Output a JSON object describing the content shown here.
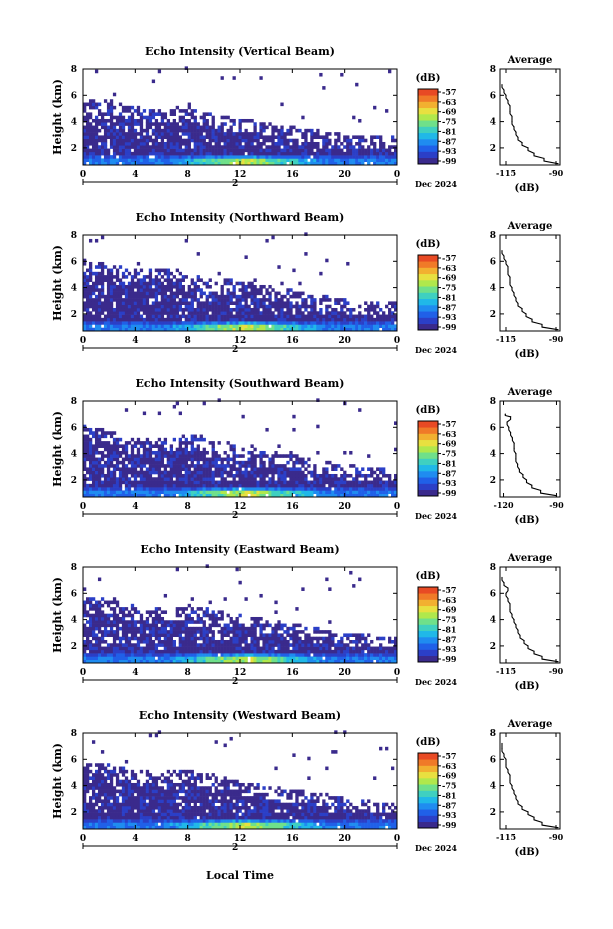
{
  "figure": {
    "xlabel": "Local Time",
    "ylabel": "Height (km)",
    "date_label": "Dec 2024",
    "day_label": "2",
    "cbar_unit": "(dB)",
    "avg_title": "Average",
    "avg_xlabel": "(dB)"
  },
  "colors": {
    "colormap": [
      "#3a2a8c",
      "#2b3fc7",
      "#2060e8",
      "#1f8cf0",
      "#20b8e8",
      "#3fd0c0",
      "#6fe08a",
      "#b0e84c",
      "#e8e040",
      "#f2b030",
      "#f07a28",
      "#e84a24"
    ],
    "background": "#ffffff",
    "axis": "#000000"
  },
  "chart_data": [
    {
      "type": "heatmap",
      "title": "Echo Intensity (Vertical Beam)",
      "x_ticks": [
        "0",
        "4",
        "8",
        "12",
        "16",
        "20",
        "0"
      ],
      "y_ticks": [
        "2",
        "4",
        "6",
        "8"
      ],
      "xlim": [
        0,
        24
      ],
      "ylim": [
        0.7,
        8
      ],
      "cbar_ticks": [
        "-57",
        "-63",
        "-69",
        "-75",
        "-81",
        "-87",
        "-93",
        "-99"
      ],
      "ceiling": [
        [
          0,
          5.3
        ],
        [
          2,
          5.1
        ],
        [
          4,
          4.6
        ],
        [
          6,
          4.3
        ],
        [
          8,
          4.6
        ],
        [
          10,
          4.0
        ],
        [
          12,
          3.7
        ],
        [
          14,
          3.4
        ],
        [
          16,
          3.1
        ],
        [
          18,
          2.8
        ],
        [
          20,
          2.5
        ],
        [
          22,
          2.4
        ],
        [
          24,
          2.3
        ]
      ],
      "avg_profile": {
        "x_ticks": [
          "-115",
          "-90"
        ],
        "xlim": [
          -118,
          -88
        ],
        "y_ticks": [
          "2",
          "4",
          "6",
          "8"
        ],
        "ylim": [
          0.7,
          8
        ],
        "height": [
          0.8,
          1.2,
          1.6,
          2.0,
          2.4,
          2.8,
          3.2,
          3.6,
          4.0,
          4.4,
          4.8,
          5.2,
          5.6,
          6.0,
          6.4,
          6.8
        ],
        "db": [
          -89,
          -96,
          -101,
          -104,
          -107,
          -109,
          -110,
          -111,
          -112,
          -112,
          -113,
          -113,
          -114,
          -115,
          -116,
          -117
        ]
      }
    },
    {
      "type": "heatmap",
      "title": "Echo Intensity (Northward Beam)",
      "x_ticks": [
        "0",
        "4",
        "8",
        "12",
        "16",
        "20",
        "0"
      ],
      "y_ticks": [
        "2",
        "4",
        "6",
        "8"
      ],
      "xlim": [
        0,
        24
      ],
      "ylim": [
        0.7,
        8
      ],
      "cbar_ticks": [
        "-57",
        "-63",
        "-69",
        "-75",
        "-81",
        "-87",
        "-93",
        "-99"
      ],
      "ceiling": [
        [
          0,
          5.6
        ],
        [
          2,
          5.3
        ],
        [
          4,
          4.8
        ],
        [
          6,
          5.0
        ],
        [
          8,
          4.4
        ],
        [
          10,
          4.2
        ],
        [
          12,
          4.0
        ],
        [
          14,
          3.6
        ],
        [
          16,
          3.3
        ],
        [
          18,
          2.9
        ],
        [
          20,
          2.6
        ],
        [
          22,
          2.4
        ],
        [
          24,
          2.3
        ]
      ],
      "avg_profile": {
        "x_ticks": [
          "-115",
          "-90"
        ],
        "xlim": [
          -118,
          -88
        ],
        "y_ticks": [
          "2",
          "4",
          "6",
          "8"
        ],
        "ylim": [
          0.7,
          8
        ],
        "height": [
          0.8,
          1.2,
          1.6,
          2.0,
          2.4,
          2.8,
          3.2,
          3.6,
          4.0,
          4.4,
          4.8,
          5.2,
          5.6,
          6.0,
          6.4,
          6.8
        ],
        "db": [
          -89,
          -97,
          -102,
          -105,
          -107,
          -109,
          -110,
          -111,
          -112,
          -113,
          -113,
          -114,
          -114,
          -115,
          -116,
          -117
        ]
      }
    },
    {
      "type": "heatmap",
      "title": "Echo Intensity (Southward Beam)",
      "x_ticks": [
        "0",
        "4",
        "8",
        "12",
        "16",
        "20",
        "0"
      ],
      "y_ticks": [
        "2",
        "4",
        "6",
        "8"
      ],
      "xlim": [
        0,
        24
      ],
      "ylim": [
        0.7,
        8
      ],
      "cbar_ticks": [
        "-57",
        "-63",
        "-69",
        "-75",
        "-81",
        "-87",
        "-93",
        "-99"
      ],
      "ceiling": [
        [
          0,
          5.6
        ],
        [
          2,
          5.2
        ],
        [
          4,
          4.6
        ],
        [
          6,
          4.6
        ],
        [
          8,
          5.0
        ],
        [
          10,
          4.4
        ],
        [
          12,
          4.0
        ],
        [
          14,
          3.7
        ],
        [
          16,
          3.4
        ],
        [
          18,
          3.0
        ],
        [
          20,
          2.7
        ],
        [
          22,
          2.4
        ],
        [
          24,
          2.3
        ]
      ],
      "avg_profile": {
        "x_ticks": [
          "-120",
          "-90"
        ],
        "xlim": [
          -122,
          -88
        ],
        "y_ticks": [
          "2",
          "4",
          "6",
          "8"
        ],
        "ylim": [
          0.7,
          8
        ],
        "height": [
          0.8,
          1.2,
          1.6,
          2.0,
          2.4,
          2.8,
          3.2,
          3.6,
          4.0,
          4.4,
          4.8,
          5.2,
          5.6,
          6.0,
          6.4,
          6.8,
          7.0
        ],
        "db": [
          -90,
          -99,
          -104,
          -107,
          -109,
          -111,
          -112,
          -113,
          -113,
          -114,
          -114,
          -115,
          -116,
          -117,
          -118,
          -116,
          -119
        ]
      }
    },
    {
      "type": "heatmap",
      "title": "Echo Intensity (Eastward Beam)",
      "x_ticks": [
        "0",
        "4",
        "8",
        "12",
        "16",
        "20",
        "0"
      ],
      "y_ticks": [
        "2",
        "4",
        "6",
        "8"
      ],
      "xlim": [
        0,
        24
      ],
      "ylim": [
        0.7,
        8
      ],
      "cbar_ticks": [
        "-57",
        "-63",
        "-69",
        "-75",
        "-81",
        "-87",
        "-93",
        "-99"
      ],
      "ceiling": [
        [
          0,
          5.2
        ],
        [
          2,
          5.0
        ],
        [
          4,
          4.5
        ],
        [
          6,
          4.4
        ],
        [
          8,
          4.6
        ],
        [
          10,
          4.2
        ],
        [
          12,
          3.8
        ],
        [
          14,
          3.5
        ],
        [
          16,
          3.2
        ],
        [
          18,
          2.8
        ],
        [
          20,
          2.5
        ],
        [
          22,
          2.3
        ],
        [
          24,
          2.2
        ]
      ],
      "avg_profile": {
        "x_ticks": [
          "-115",
          "-90"
        ],
        "xlim": [
          -118,
          -88
        ],
        "y_ticks": [
          "2",
          "4",
          "6",
          "8"
        ],
        "ylim": [
          0.7,
          8
        ],
        "height": [
          0.8,
          1.2,
          1.6,
          2.0,
          2.4,
          2.8,
          3.2,
          3.6,
          4.0,
          4.4,
          4.8,
          5.2,
          5.6,
          6.0,
          6.4,
          6.8,
          7.2
        ],
        "db": [
          -89,
          -97,
          -101,
          -104,
          -106,
          -108,
          -109,
          -110,
          -111,
          -112,
          -113,
          -113,
          -114,
          -115,
          -114,
          -116,
          -117
        ]
      }
    },
    {
      "type": "heatmap",
      "title": "Echo Intensity (Westward Beam)",
      "x_ticks": [
        "0",
        "4",
        "8",
        "12",
        "16",
        "20",
        "0"
      ],
      "y_ticks": [
        "2",
        "4",
        "6",
        "8"
      ],
      "xlim": [
        0,
        24
      ],
      "ylim": [
        0.7,
        8
      ],
      "cbar_ticks": [
        "-57",
        "-63",
        "-69",
        "-75",
        "-81",
        "-87",
        "-93",
        "-99"
      ],
      "ceiling": [
        [
          0,
          5.4
        ],
        [
          2,
          5.2
        ],
        [
          4,
          4.7
        ],
        [
          6,
          4.5
        ],
        [
          8,
          4.8
        ],
        [
          10,
          4.3
        ],
        [
          12,
          3.9
        ],
        [
          14,
          3.5
        ],
        [
          16,
          3.2
        ],
        [
          18,
          2.9
        ],
        [
          20,
          2.6
        ],
        [
          22,
          2.3
        ],
        [
          24,
          2.2
        ]
      ],
      "avg_profile": {
        "x_ticks": [
          "-115",
          "-90"
        ],
        "xlim": [
          -118,
          -88
        ],
        "y_ticks": [
          "2",
          "4",
          "6",
          "8"
        ],
        "ylim": [
          0.7,
          8
        ],
        "height": [
          0.8,
          1.2,
          1.6,
          2.0,
          2.4,
          2.8,
          3.2,
          3.6,
          4.0,
          4.4,
          4.8,
          5.2,
          5.6,
          6.0,
          6.4,
          6.8,
          7.2
        ],
        "db": [
          -89,
          -97,
          -101,
          -104,
          -107,
          -109,
          -110,
          -111,
          -112,
          -113,
          -113,
          -114,
          -115,
          -115,
          -116,
          -117,
          -117
        ]
      }
    }
  ]
}
